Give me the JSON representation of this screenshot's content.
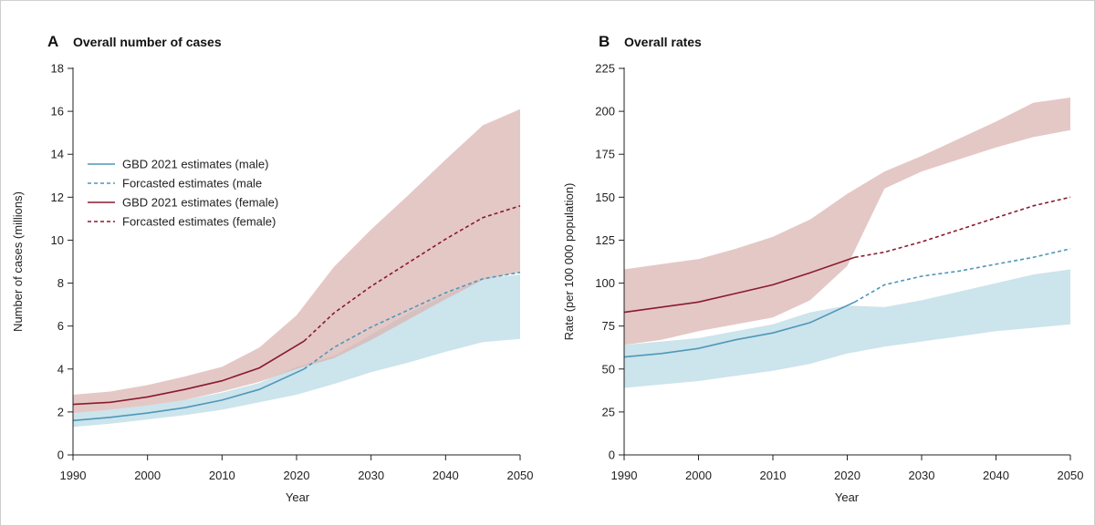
{
  "colors": {
    "male_line": "#4f97b8",
    "male_band": "#c6e1ea",
    "female_line": "#8a1a2e",
    "female_band": "#d9b3b0",
    "overlap_band": "#b6a9ae"
  },
  "chart_data": [
    {
      "type": "area",
      "panel_letter": "A",
      "title": "Overall number of cases",
      "xlabel": "Year",
      "ylabel": "Number of cases (millions)",
      "xlim": [
        1990,
        2050
      ],
      "ylim": [
        0,
        18
      ],
      "xticks": [
        1990,
        2000,
        2010,
        2020,
        2030,
        2040,
        2050
      ],
      "yticks": [
        0,
        2,
        4,
        6,
        8,
        10,
        12,
        14,
        16,
        18
      ],
      "legend_position": "left",
      "legend": [
        {
          "label": "GBD 2021 estimates (male)",
          "color_key": "male_line",
          "dashed": false
        },
        {
          "label": "Forcasted estimates (male",
          "color_key": "male_line",
          "dashed": true
        },
        {
          "label": "GBD 2021 estimates (female)",
          "color_key": "female_line",
          "dashed": false
        },
        {
          "label": "Forcasted estimates (female)",
          "color_key": "female_line",
          "dashed": true
        }
      ],
      "series": [
        {
          "key": "male",
          "line_color_key": "male_line",
          "band_color_key": "male_band",
          "estimates": {
            "x": [
              1990,
              1995,
              2000,
              2005,
              2010,
              2015,
              2021
            ],
            "y": [
              1.6,
              1.75,
              1.95,
              2.2,
              2.55,
              3.05,
              4.0
            ]
          },
          "forecast": {
            "x": [
              2021,
              2025,
              2030,
              2035,
              2040,
              2045,
              2050
            ],
            "y": [
              4.0,
              5.0,
              5.95,
              6.75,
              7.55,
              8.2,
              8.5
            ]
          },
          "band": {
            "x": [
              1990,
              1995,
              2000,
              2005,
              2010,
              2015,
              2020,
              2025,
              2030,
              2035,
              2040,
              2045,
              2050
            ],
            "lower": [
              1.3,
              1.45,
              1.65,
              1.85,
              2.1,
              2.45,
              2.8,
              3.3,
              3.85,
              4.3,
              4.8,
              5.25,
              5.4
            ],
            "upper": [
              1.95,
              2.1,
              2.3,
              2.55,
              2.9,
              3.35,
              4.1,
              4.6,
              5.6,
              6.6,
              7.45,
              8.2,
              8.4
            ]
          }
        },
        {
          "key": "female",
          "line_color_key": "female_line",
          "band_color_key": "female_band",
          "estimates": {
            "x": [
              1990,
              1995,
              2000,
              2005,
              2010,
              2015,
              2021
            ],
            "y": [
              2.35,
              2.45,
              2.7,
              3.05,
              3.45,
              4.05,
              5.3
            ]
          },
          "forecast": {
            "x": [
              2021,
              2025,
              2030,
              2035,
              2040,
              2045,
              2050
            ],
            "y": [
              5.3,
              6.6,
              7.85,
              8.95,
              10.05,
              11.05,
              11.6
            ]
          },
          "band": {
            "x": [
              1990,
              1995,
              2000,
              2005,
              2010,
              2015,
              2020,
              2025,
              2030,
              2035,
              2040,
              2045,
              2050
            ],
            "lower": [
              1.95,
              2.1,
              2.3,
              2.55,
              2.95,
              3.4,
              4.0,
              4.5,
              5.35,
              6.3,
              7.25,
              8.15,
              8.5
            ],
            "upper": [
              2.8,
              2.95,
              3.25,
              3.65,
              4.1,
              5.0,
              6.5,
              8.75,
              10.5,
              12.1,
              13.75,
              15.35,
              16.1
            ]
          }
        }
      ]
    },
    {
      "type": "area",
      "panel_letter": "B",
      "title": "Overall rates",
      "xlabel": "Year",
      "ylabel": "Rate (per 100 000 population)",
      "xlim": [
        1990,
        2050
      ],
      "ylim": [
        0,
        225
      ],
      "xticks": [
        1990,
        2000,
        2010,
        2020,
        2030,
        2040,
        2050
      ],
      "yticks": [
        0,
        25,
        50,
        75,
        100,
        125,
        150,
        175,
        200,
        225
      ],
      "legend_position": "none",
      "legend": [],
      "series": [
        {
          "key": "male",
          "line_color_key": "male_line",
          "band_color_key": "male_band",
          "estimates": {
            "x": [
              1990,
              1995,
              2000,
              2005,
              2010,
              2015,
              2021
            ],
            "y": [
              57,
              59,
              62,
              67,
              71,
              77,
              89
            ]
          },
          "forecast": {
            "x": [
              2021,
              2025,
              2030,
              2035,
              2040,
              2045,
              2050
            ],
            "y": [
              89,
              99,
              104,
              107,
              111,
              115,
              120
            ]
          },
          "band": {
            "x": [
              1990,
              1995,
              2000,
              2005,
              2010,
              2015,
              2020,
              2025,
              2030,
              2035,
              2040,
              2045,
              2050
            ],
            "lower": [
              39,
              41,
              43,
              46,
              49,
              53,
              59,
              63,
              66,
              69,
              72,
              74,
              76
            ],
            "upper": [
              64,
              66,
              68,
              72,
              76,
              83,
              87,
              86,
              90,
              95,
              100,
              105,
              108
            ]
          }
        },
        {
          "key": "female",
          "line_color_key": "female_line",
          "band_color_key": "female_band",
          "estimates": {
            "x": [
              1990,
              1995,
              2000,
              2005,
              2010,
              2015,
              2021
            ],
            "y": [
              83,
              86,
              89,
              94,
              99,
              106,
              115
            ]
          },
          "forecast": {
            "x": [
              2021,
              2025,
              2030,
              2035,
              2040,
              2045,
              2050
            ],
            "y": [
              115,
              118,
              124,
              131,
              138,
              145,
              150
            ]
          },
          "band": {
            "x": [
              1990,
              1995,
              2000,
              2005,
              2010,
              2015,
              2020,
              2025,
              2030,
              2035,
              2040,
              2045,
              2050
            ],
            "lower": [
              64,
              67,
              72,
              76,
              80,
              90,
              110,
              155,
              165,
              172,
              179,
              185,
              189
            ],
            "upper": [
              108,
              111,
              114,
              120,
              127,
              137,
              152,
              165,
              174,
              184,
              194,
              205,
              208
            ]
          }
        }
      ]
    }
  ]
}
